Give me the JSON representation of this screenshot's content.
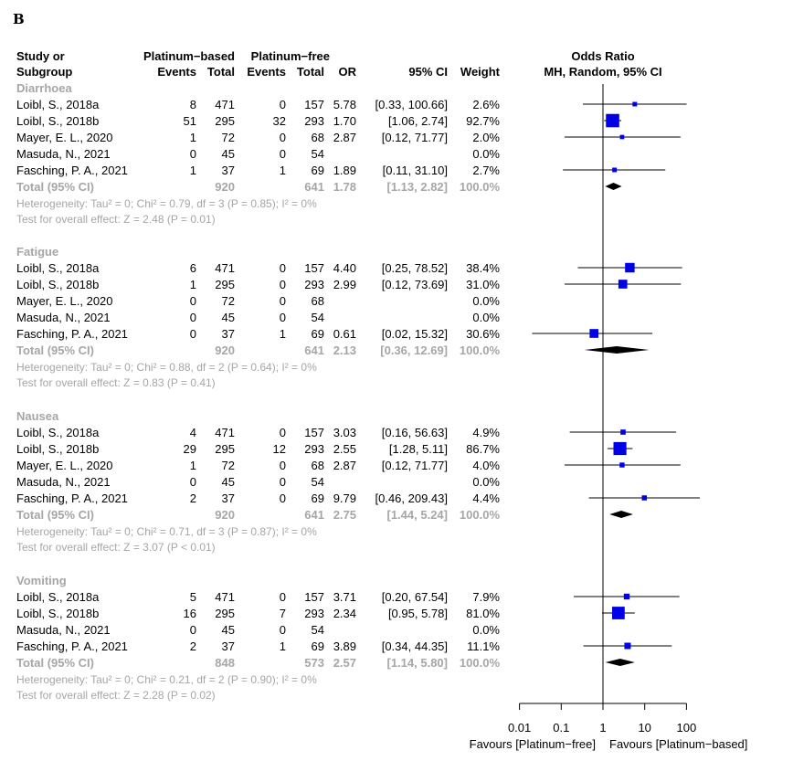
{
  "panel_label": "B",
  "chart_data": {
    "type": "forest",
    "headers": {
      "study": [
        "Study or",
        "Subgroup"
      ],
      "group1": "Platinum−based",
      "group2": "Platinum−free",
      "events": "Events",
      "total": "Total",
      "or": "OR",
      "ci": "95% CI",
      "weight": "Weight",
      "plot_title": "Odds Ratio",
      "plot_subtitle": "MH, Random, 95% CI"
    },
    "axis": {
      "scale": "log",
      "ticks": [
        "0.01",
        "0.1",
        "1",
        "10",
        "100"
      ],
      "tick_values": [
        0.01,
        0.1,
        1,
        10,
        100
      ],
      "reference_line": 1,
      "label_left": "Favours [Platinum−free]",
      "label_right": "Favours [Platinum−based]"
    },
    "colors": {
      "square": "#0000e6",
      "diamond": "#000000",
      "summary_text": "#a6a6a6"
    },
    "subgroups": [
      {
        "name": "Diarrhoea",
        "studies": [
          {
            "study": "Loibl, S., 2018a",
            "e1": "8",
            "n1": "471",
            "e2": "0",
            "n2": "157",
            "or": "5.78",
            "ci": "[0.33, 100.66]",
            "weight": "2.6%",
            "or_value": 5.78,
            "ci_low": 0.33,
            "ci_high": 100.66,
            "weight_value": 2.6
          },
          {
            "study": "Loibl, S., 2018b",
            "e1": "51",
            "n1": "295",
            "e2": "32",
            "n2": "293",
            "or": "1.70",
            "ci": "[1.06,   2.74]",
            "weight": "92.7%",
            "or_value": 1.7,
            "ci_low": 1.06,
            "ci_high": 2.74,
            "weight_value": 92.7
          },
          {
            "study": "Mayer, E. L., 2020",
            "e1": "1",
            "n1": "72",
            "e2": "0",
            "n2": "68",
            "or": "2.87",
            "ci": "[0.12, 71.77]",
            "weight": "2.0%",
            "or_value": 2.87,
            "ci_low": 0.12,
            "ci_high": 71.77,
            "weight_value": 2.0
          },
          {
            "study": "Masuda, N., 2021",
            "e1": "0",
            "n1": "45",
            "e2": "0",
            "n2": "54",
            "or": "",
            "ci": "",
            "weight": "0.0%",
            "or_value": null,
            "ci_low": null,
            "ci_high": null,
            "weight_value": 0
          },
          {
            "study": "Fasching, P. A., 2021",
            "e1": "1",
            "n1": "37",
            "e2": "1",
            "n2": "69",
            "or": "1.89",
            "ci": "[0.11, 31.10]",
            "weight": "2.7%",
            "or_value": 1.89,
            "ci_low": 0.11,
            "ci_high": 31.1,
            "weight_value": 2.7
          }
        ],
        "total": {
          "label": "Total (95% CI)",
          "n1": "920",
          "n2": "641",
          "or": "1.78",
          "ci": "[1.13,   2.82]",
          "weight": "100.0%",
          "or_value": 1.78,
          "ci_low": 1.13,
          "ci_high": 2.82
        },
        "heterogeneity": "Heterogeneity: Tau² = 0; Chi² = 0.79, df = 3 (P = 0.85); I² = 0%",
        "overall_effect": "Test for overall effect: Z = 2.48 (P = 0.01)"
      },
      {
        "name": "Fatigue",
        "studies": [
          {
            "study": "Loibl, S., 2018a",
            "e1": "6",
            "n1": "471",
            "e2": "0",
            "n2": "157",
            "or": "4.40",
            "ci": "[0.25, 78.52]",
            "weight": "38.4%",
            "or_value": 4.4,
            "ci_low": 0.25,
            "ci_high": 78.52,
            "weight_value": 38.4
          },
          {
            "study": "Loibl, S., 2018b",
            "e1": "1",
            "n1": "295",
            "e2": "0",
            "n2": "293",
            "or": "2.99",
            "ci": "[0.12, 73.69]",
            "weight": "31.0%",
            "or_value": 2.99,
            "ci_low": 0.12,
            "ci_high": 73.69,
            "weight_value": 31.0
          },
          {
            "study": "Mayer, E. L., 2020",
            "e1": "0",
            "n1": "72",
            "e2": "0",
            "n2": "68",
            "or": "",
            "ci": "",
            "weight": "0.0%",
            "or_value": null,
            "ci_low": null,
            "ci_high": null,
            "weight_value": 0
          },
          {
            "study": "Masuda, N., 2021",
            "e1": "0",
            "n1": "45",
            "e2": "0",
            "n2": "54",
            "or": "",
            "ci": "",
            "weight": "0.0%",
            "or_value": null,
            "ci_low": null,
            "ci_high": null,
            "weight_value": 0
          },
          {
            "study": "Fasching, P. A., 2021",
            "e1": "0",
            "n1": "37",
            "e2": "1",
            "n2": "69",
            "or": "0.61",
            "ci": "[0.02, 15.32]",
            "weight": "30.6%",
            "or_value": 0.61,
            "ci_low": 0.02,
            "ci_high": 15.32,
            "weight_value": 30.6
          }
        ],
        "total": {
          "label": "Total (95% CI)",
          "n1": "920",
          "n2": "641",
          "or": "2.13",
          "ci": "[0.36, 12.69]",
          "weight": "100.0%",
          "or_value": 2.13,
          "ci_low": 0.36,
          "ci_high": 12.69
        },
        "heterogeneity": "Heterogeneity: Tau² = 0; Chi² = 0.88, df = 2 (P = 0.64); I² = 0%",
        "overall_effect": "Test for overall effect: Z = 0.83 (P = 0.41)"
      },
      {
        "name": "Nausea",
        "studies": [
          {
            "study": "Loibl, S., 2018a",
            "e1": "4",
            "n1": "471",
            "e2": "0",
            "n2": "157",
            "or": "3.03",
            "ci": "[0.16, 56.63]",
            "weight": "4.9%",
            "or_value": 3.03,
            "ci_low": 0.16,
            "ci_high": 56.63,
            "weight_value": 4.9
          },
          {
            "study": "Loibl, S., 2018b",
            "e1": "29",
            "n1": "295",
            "e2": "12",
            "n2": "293",
            "or": "2.55",
            "ci": "[1.28,   5.11]",
            "weight": "86.7%",
            "or_value": 2.55,
            "ci_low": 1.28,
            "ci_high": 5.11,
            "weight_value": 86.7
          },
          {
            "study": "Mayer, E. L., 2020",
            "e1": "1",
            "n1": "72",
            "e2": "0",
            "n2": "68",
            "or": "2.87",
            "ci": "[0.12, 71.77]",
            "weight": "4.0%",
            "or_value": 2.87,
            "ci_low": 0.12,
            "ci_high": 71.77,
            "weight_value": 4.0
          },
          {
            "study": "Masuda, N., 2021",
            "e1": "0",
            "n1": "45",
            "e2": "0",
            "n2": "54",
            "or": "",
            "ci": "",
            "weight": "0.0%",
            "or_value": null,
            "ci_low": null,
            "ci_high": null,
            "weight_value": 0
          },
          {
            "study": "Fasching, P. A., 2021",
            "e1": "2",
            "n1": "37",
            "e2": "0",
            "n2": "69",
            "or": "9.79",
            "ci": "[0.46, 209.43]",
            "weight": "4.4%",
            "or_value": 9.79,
            "ci_low": 0.46,
            "ci_high": 209.43,
            "weight_value": 4.4
          }
        ],
        "total": {
          "label": "Total (95% CI)",
          "n1": "920",
          "n2": "641",
          "or": "2.75",
          "ci": "[1.44,   5.24]",
          "weight": "100.0%",
          "or_value": 2.75,
          "ci_low": 1.44,
          "ci_high": 5.24
        },
        "heterogeneity": "Heterogeneity: Tau² = 0; Chi² = 0.71, df = 3 (P = 0.87); I² = 0%",
        "overall_effect": "Test for overall effect: Z = 3.07 (P < 0.01)"
      },
      {
        "name": "Vomiting",
        "studies": [
          {
            "study": "Loibl, S., 2018a",
            "e1": "5",
            "n1": "471",
            "e2": "0",
            "n2": "157",
            "or": "3.71",
            "ci": "[0.20, 67.54]",
            "weight": "7.9%",
            "or_value": 3.71,
            "ci_low": 0.2,
            "ci_high": 67.54,
            "weight_value": 7.9
          },
          {
            "study": "Loibl, S., 2018b",
            "e1": "16",
            "n1": "295",
            "e2": "7",
            "n2": "293",
            "or": "2.34",
            "ci": "[0.95,   5.78]",
            "weight": "81.0%",
            "or_value": 2.34,
            "ci_low": 0.95,
            "ci_high": 5.78,
            "weight_value": 81.0
          },
          {
            "study": "Masuda, N., 2021",
            "e1": "0",
            "n1": "45",
            "e2": "0",
            "n2": "54",
            "or": "",
            "ci": "",
            "weight": "0.0%",
            "or_value": null,
            "ci_low": null,
            "ci_high": null,
            "weight_value": 0
          },
          {
            "study": "Fasching, P. A., 2021",
            "e1": "2",
            "n1": "37",
            "e2": "1",
            "n2": "69",
            "or": "3.89",
            "ci": "[0.34, 44.35]",
            "weight": "11.1%",
            "or_value": 3.89,
            "ci_low": 0.34,
            "ci_high": 44.35,
            "weight_value": 11.1
          }
        ],
        "total": {
          "label": "Total (95% CI)",
          "n1": "848",
          "n2": "573",
          "or": "2.57",
          "ci": "[1.14,   5.80]",
          "weight": "100.0%",
          "or_value": 2.57,
          "ci_low": 1.14,
          "ci_high": 5.8
        },
        "heterogeneity": "Heterogeneity: Tau² = 0; Chi² = 0.21, df = 2 (P = 0.90); I² = 0%",
        "overall_effect": "Test for overall effect: Z = 2.28 (P = 0.02)"
      }
    ]
  }
}
